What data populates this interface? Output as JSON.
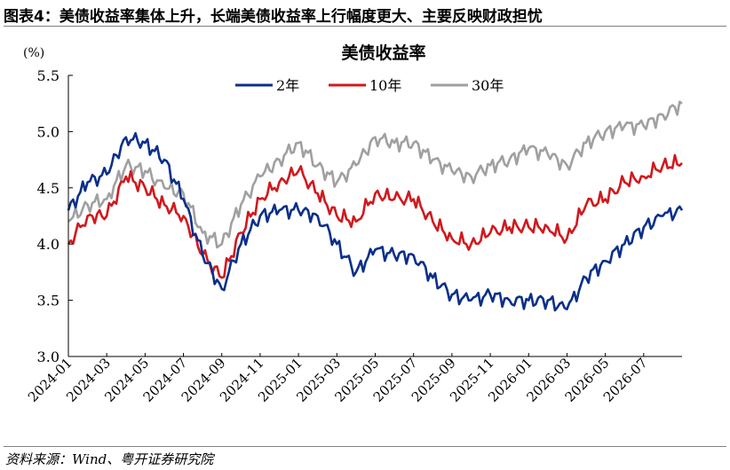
{
  "figure": {
    "title": "图表4：美债收益率集体上升，长端美债收益率上行幅度更大、主要反映财政担忧",
    "source": "资料来源：Wind、粤开证券研究院"
  },
  "chart_data": {
    "type": "line",
    "title": "美债收益率",
    "ylabel": "(%)",
    "xlabel": "",
    "ylim": [
      3.0,
      5.5
    ],
    "yticks": [
      3.0,
      3.5,
      4.0,
      4.5,
      5.0,
      5.5
    ],
    "ytick_labels": [
      "3.0",
      "3.5",
      "4.0",
      "4.5",
      "5.0",
      "5.5"
    ],
    "xlim": [
      "2024-01",
      "2026-09"
    ],
    "xticks": [
      "2024-01",
      "2024-03",
      "2024-05",
      "2024-07",
      "2024-09",
      "2024-11",
      "2025-01",
      "2025-03",
      "2025-05",
      "2025-07",
      "2025-09",
      "2025-11",
      "2026-01",
      "2026-03",
      "2026-05",
      "2026-07"
    ],
    "grid": false,
    "legend_position": "top-center",
    "x": [
      "2024-01",
      "2024-02",
      "2024-03",
      "2024-04",
      "2024-05",
      "2024-06",
      "2024-07",
      "2024-08",
      "2024-09",
      "2024-10",
      "2024-11",
      "2024-12",
      "2025-01",
      "2025-02",
      "2025-03",
      "2025-04",
      "2025-05",
      "2025-06",
      "2025-07",
      "2025-08",
      "2025-09",
      "2025-10",
      "2025-11",
      "2025-12",
      "2026-01",
      "2026-02",
      "2026-03",
      "2026-04",
      "2026-05",
      "2026-06",
      "2026-07",
      "2026-08",
      "2026-09"
    ],
    "series": [
      {
        "name": "2年",
        "color": "#0b2f8a",
        "values": [
          4.3,
          4.55,
          4.62,
          4.95,
          4.9,
          4.75,
          4.4,
          3.9,
          3.6,
          4.0,
          4.25,
          4.3,
          4.3,
          4.25,
          4.0,
          3.75,
          3.95,
          3.9,
          3.9,
          3.7,
          3.55,
          3.5,
          3.55,
          3.5,
          3.5,
          3.5,
          3.42,
          3.7,
          3.85,
          4.0,
          4.15,
          4.25,
          4.3
        ]
      },
      {
        "name": "10年",
        "color": "#d0191e",
        "values": [
          4.0,
          4.25,
          4.25,
          4.6,
          4.5,
          4.35,
          4.25,
          3.9,
          3.7,
          4.1,
          4.4,
          4.55,
          4.65,
          4.45,
          4.25,
          4.2,
          4.45,
          4.4,
          4.4,
          4.2,
          4.05,
          4.0,
          4.1,
          4.15,
          4.15,
          4.15,
          4.05,
          4.35,
          4.4,
          4.55,
          4.6,
          4.7,
          4.72
        ]
      },
      {
        "name": "30年",
        "color": "#a0a0a0",
        "values": [
          4.2,
          4.35,
          4.4,
          4.7,
          4.65,
          4.5,
          4.45,
          4.1,
          4.0,
          4.35,
          4.6,
          4.75,
          4.9,
          4.7,
          4.55,
          4.7,
          4.95,
          4.9,
          4.9,
          4.75,
          4.65,
          4.6,
          4.7,
          4.75,
          4.85,
          4.8,
          4.7,
          4.9,
          5.0,
          5.05,
          5.05,
          5.15,
          5.25
        ]
      }
    ]
  }
}
